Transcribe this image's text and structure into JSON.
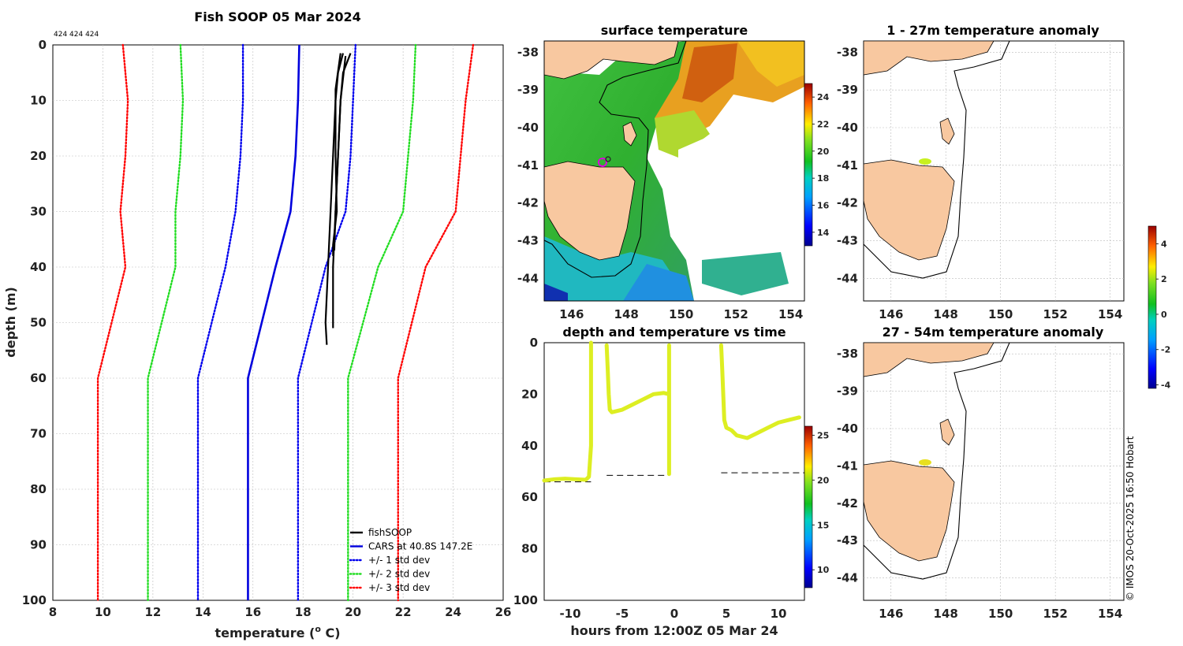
{
  "figure": {
    "copyright": "© IMOS 20-Oct-2025 16:50 Hobart"
  },
  "chart_data": [
    {
      "id": "profile",
      "type": "line",
      "title": "Fish SOOP 05 Mar 2024",
      "annotation": "424 424 424",
      "xlabel": "temperature (",
      "xlabel_sup": "o",
      "xlabel_suffix": " C)",
      "ylabel": "depth (m)",
      "xlim": [
        8,
        26
      ],
      "ylim": [
        0,
        100
      ],
      "xticks": [
        8,
        10,
        12,
        14,
        16,
        18,
        20,
        22,
        24,
        26
      ],
      "yticks": [
        0,
        10,
        20,
        30,
        40,
        50,
        60,
        70,
        80,
        90,
        100
      ],
      "depths": [
        0,
        10,
        20,
        30,
        40,
        60,
        100
      ],
      "cars_label": "CARS at 40.8S 147.2E",
      "series": [
        {
          "name": "+/- 3 std dev",
          "color": "#ff0000",
          "dotted": true,
          "legend": true,
          "x": [
            10.8,
            11.0,
            10.9,
            10.7,
            10.9,
            9.8,
            9.8
          ]
        },
        {
          "name": "+/- 3 std dev upper",
          "color": "#ff0000",
          "dotted": true,
          "legend": false,
          "x": [
            24.8,
            24.5,
            24.3,
            24.1,
            22.9,
            21.8,
            21.8
          ]
        },
        {
          "name": "+/- 2 std dev",
          "color": "#22dd22",
          "dotted": true,
          "legend": true,
          "x": [
            13.1,
            13.2,
            13.1,
            12.9,
            12.9,
            11.8,
            11.8
          ]
        },
        {
          "name": "+/- 2 std dev upper",
          "color": "#22dd22",
          "dotted": true,
          "legend": false,
          "x": [
            22.5,
            22.4,
            22.2,
            22.0,
            21.0,
            19.8,
            19.8
          ]
        },
        {
          "name": "+/- 1 std dev",
          "color": "#0000ee",
          "dotted": true,
          "legend": true,
          "x": [
            15.6,
            15.6,
            15.5,
            15.3,
            14.9,
            13.8,
            13.8
          ]
        },
        {
          "name": "+/- 1 std dev upper",
          "color": "#0000ee",
          "dotted": true,
          "legend": false,
          "x": [
            20.1,
            20.0,
            19.9,
            19.7,
            18.9,
            17.8,
            17.8
          ]
        },
        {
          "name": "CARS at 40.8S 147.2E",
          "color": "#0000dd",
          "dotted": false,
          "legend": true,
          "x": [
            17.85,
            17.8,
            17.7,
            17.5,
            16.9,
            15.8,
            15.8
          ]
        }
      ],
      "fish_series": [
        {
          "depth": [
            1.5,
            5,
            10,
            20,
            30,
            40,
            50,
            54
          ],
          "temp": [
            19.6,
            19.4,
            19.3,
            19.2,
            19.1,
            19.0,
            18.9,
            18.95
          ]
        },
        {
          "depth": [
            1.5,
            5,
            10,
            20,
            30,
            37
          ],
          "temp": [
            19.9,
            19.6,
            19.5,
            19.4,
            19.3,
            19.25
          ]
        },
        {
          "depth": [
            2,
            10,
            20,
            30,
            40,
            51
          ],
          "temp": [
            19.7,
            19.5,
            19.4,
            19.3,
            19.2,
            19.2
          ]
        },
        {
          "depth": [
            1.5,
            8,
            20,
            30,
            36,
            38
          ],
          "temp": [
            19.5,
            19.3,
            19.3,
            19.35,
            19.2,
            19.2
          ]
        }
      ],
      "fish_label": "fishSOOP",
      "fish_color": "#000000"
    },
    {
      "id": "sst",
      "type": "heatmap",
      "title": "surface temperature",
      "xticks": [
        146,
        148,
        150,
        152,
        154
      ],
      "yticks": [
        -38,
        -39,
        -40,
        -41,
        -42,
        -43,
        -44
      ],
      "colorbar": {
        "min": 13,
        "max": 25,
        "ticks": [
          14,
          16,
          18,
          20,
          22,
          24
        ]
      }
    },
    {
      "id": "time",
      "type": "scatter",
      "title": "depth and temperature vs time",
      "xlabel": "hours from 12:00Z 05 Mar 24",
      "xlim": [
        -12.5,
        12.5
      ],
      "ylim": [
        0,
        100
      ],
      "xticks": [
        -10,
        -5,
        0,
        5,
        10
      ],
      "yticks": [
        0,
        20,
        40,
        60,
        80,
        100
      ],
      "point_color": "#ddee22",
      "tracks": [
        {
          "x": [
            -12.5,
            -11.5,
            -10.5,
            -9.5,
            -8.5,
            -8.2,
            -8.0,
            -8.0,
            -8.0,
            -8.0,
            -8.0
          ],
          "y": [
            53.5,
            53.0,
            52.8,
            53.0,
            53.2,
            52.0,
            40,
            25,
            10,
            1,
            0
          ]
        },
        {
          "x": [
            -6.5,
            -6.4,
            -6.3,
            -6.2,
            -6.0,
            -5.0,
            -4.0,
            -3.0,
            -2.0,
            -1.0,
            -0.5,
            -0.5,
            -0.5,
            -0.5,
            -0.5,
            -0.5,
            -0.5
          ],
          "y": [
            1,
            10,
            20,
            26,
            27,
            26,
            24,
            22,
            20,
            19.5,
            20,
            30,
            40,
            50,
            51,
            10,
            1
          ]
        },
        {
          "x": [
            4.5,
            4.6,
            4.7,
            4.8,
            5.0,
            5.5,
            6.0,
            7.0,
            8.0,
            9.0,
            10.0,
            11.0,
            12.0
          ],
          "y": [
            1,
            10,
            20,
            30,
            33,
            34,
            36,
            37,
            35,
            33,
            31,
            30,
            29
          ]
        }
      ],
      "dashed_refs": [
        {
          "x0": -12.5,
          "x1": -8.0,
          "y": 54
        },
        {
          "x0": -6.5,
          "x1": -0.5,
          "y": 51.5
        },
        {
          "x0": 4.5,
          "x1": 12.5,
          "y": 50.5
        }
      ],
      "colorbar": {
        "min": 8,
        "max": 26,
        "ticks": [
          10,
          15,
          20,
          25
        ]
      }
    },
    {
      "id": "anom1",
      "type": "scatter",
      "title": "1 - 27m temperature anomaly",
      "xticks": [
        146,
        148,
        150,
        152,
        154
      ],
      "yticks": [
        -38,
        -39,
        -40,
        -41,
        -42,
        -43,
        -44
      ]
    },
    {
      "id": "anom2",
      "type": "scatter",
      "title": "27 - 54m temperature anomaly",
      "xticks": [
        146,
        148,
        150,
        152,
        154
      ],
      "yticks": [
        -38,
        -39,
        -40,
        -41,
        -42,
        -43,
        -44
      ],
      "colorbar": {
        "min": -4.2,
        "max": 5,
        "ticks": [
          -4,
          -2,
          0,
          2,
          4
        ]
      }
    }
  ]
}
